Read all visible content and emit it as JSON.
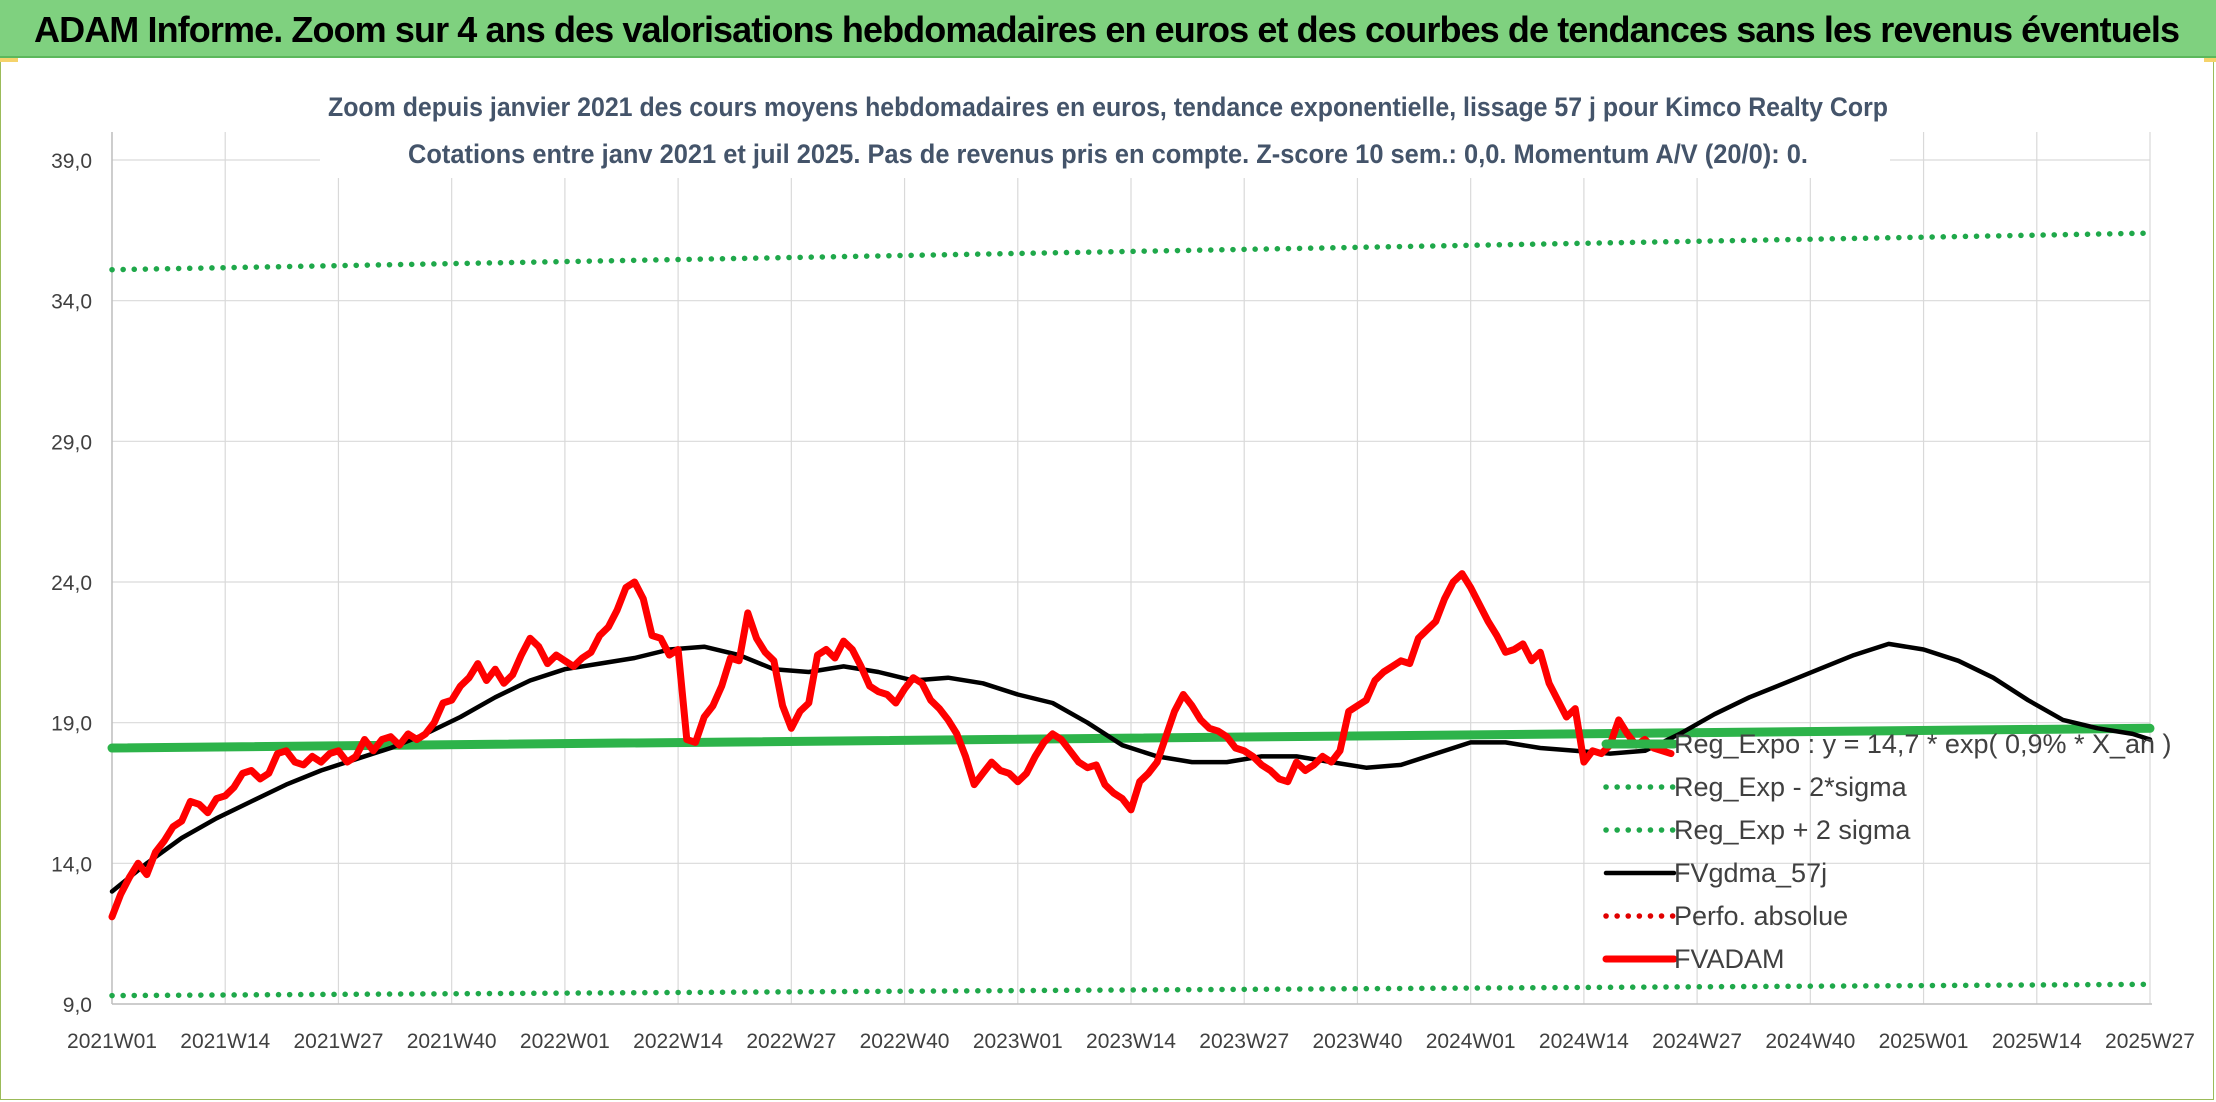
{
  "banner": {
    "title": "ADAM Informe. Zoom sur 4 ans des valorisations hebdomadaires en euros et des courbes de tendances sans les revenus éventuels"
  },
  "colors": {
    "banner_bg": "#7fd17f",
    "reg_expo": "#2db34a",
    "reg_band": "#1fa84a",
    "fvgdma": "#000000",
    "perfo": "#e00000",
    "fvadam": "#ff0000",
    "grid": "#d9d9d9"
  },
  "chart_data": {
    "type": "line",
    "title_line1": "Zoom depuis janvier 2021 des cours moyens hebdomadaires en euros, tendance exponentielle, lissage 57 j pour Kimco Realty Corp",
    "title_line2": "Cotations entre janv 2021 et juil 2025. Pas de revenus pris en compte. Z-score 10 sem.: 0,0. Momentum A/V (20/0): 0.",
    "ylim": [
      9,
      39
    ],
    "y_ticks": [
      "9,0",
      "14,0",
      "19,0",
      "24,0",
      "29,0",
      "34,0",
      "39,0"
    ],
    "y_tick_values": [
      9,
      14,
      19,
      24,
      29,
      34,
      39
    ],
    "x_ticks": [
      "2021W01",
      "2021W14",
      "2021W27",
      "2021W40",
      "2022W01",
      "2022W14",
      "2022W27",
      "2022W40",
      "2023W01",
      "2023W14",
      "2023W27",
      "2023W40",
      "2024W01",
      "2024W14",
      "2024W27",
      "2024W40",
      "2025W01",
      "2025W14",
      "2025W27"
    ],
    "x_tick_weeks": [
      0,
      13,
      26,
      39,
      52,
      65,
      78,
      91,
      104,
      117,
      130,
      143,
      156,
      169,
      182,
      195,
      208,
      221,
      234
    ],
    "grid": true,
    "legend_position": "bottom-right",
    "series": [
      {
        "name": "Reg_Expo : y = 14,7 * exp( 0,9% * X_an )",
        "style": "solid-thick",
        "color": "#2db34a",
        "points": [
          [
            0,
            18.1
          ],
          [
            234,
            18.8
          ]
        ]
      },
      {
        "name": "Reg_Exp - 2*sigma",
        "style": "dotted",
        "color": "#1fa84a",
        "points": [
          [
            0,
            9.3
          ],
          [
            234,
            9.7
          ]
        ]
      },
      {
        "name": "Reg_Exp + 2 sigma",
        "style": "dotted",
        "color": "#1fa84a",
        "points": [
          [
            0,
            35.1
          ],
          [
            234,
            36.4
          ]
        ]
      },
      {
        "name": "FVgdma_57j",
        "style": "solid",
        "color": "#000000",
        "points": [
          [
            0,
            13.0
          ],
          [
            4,
            14.0
          ],
          [
            8,
            14.9
          ],
          [
            12,
            15.6
          ],
          [
            16,
            16.2
          ],
          [
            20,
            16.8
          ],
          [
            24,
            17.3
          ],
          [
            28,
            17.7
          ],
          [
            32,
            18.1
          ],
          [
            36,
            18.6
          ],
          [
            40,
            19.2
          ],
          [
            44,
            19.9
          ],
          [
            48,
            20.5
          ],
          [
            52,
            20.9
          ],
          [
            56,
            21.1
          ],
          [
            60,
            21.3
          ],
          [
            64,
            21.6
          ],
          [
            68,
            21.7
          ],
          [
            72,
            21.4
          ],
          [
            76,
            20.9
          ],
          [
            80,
            20.8
          ],
          [
            84,
            21.0
          ],
          [
            88,
            20.8
          ],
          [
            92,
            20.5
          ],
          [
            96,
            20.6
          ],
          [
            100,
            20.4
          ],
          [
            104,
            20.0
          ],
          [
            108,
            19.7
          ],
          [
            112,
            19.0
          ],
          [
            116,
            18.2
          ],
          [
            120,
            17.8
          ],
          [
            124,
            17.6
          ],
          [
            128,
            17.6
          ],
          [
            132,
            17.8
          ],
          [
            136,
            17.8
          ],
          [
            140,
            17.6
          ],
          [
            144,
            17.4
          ],
          [
            148,
            17.5
          ],
          [
            152,
            17.9
          ],
          [
            156,
            18.3
          ],
          [
            160,
            18.3
          ],
          [
            164,
            18.1
          ],
          [
            168,
            18.0
          ],
          [
            172,
            17.9
          ],
          [
            176,
            18.0
          ],
          [
            180,
            18.6
          ],
          [
            184,
            19.3
          ],
          [
            188,
            19.9
          ],
          [
            192,
            20.4
          ],
          [
            196,
            20.9
          ],
          [
            200,
            21.4
          ],
          [
            204,
            21.8
          ],
          [
            208,
            21.6
          ],
          [
            212,
            21.2
          ],
          [
            216,
            20.6
          ],
          [
            220,
            19.8
          ],
          [
            224,
            19.1
          ],
          [
            228,
            18.8
          ],
          [
            232,
            18.6
          ],
          [
            234,
            18.4
          ]
        ]
      },
      {
        "name": "Perfo. absolue",
        "style": "dotted",
        "color": "#e00000",
        "points": []
      },
      {
        "name": "FVADAM",
        "style": "solid-thick",
        "color": "#ff0000",
        "points": [
          [
            0,
            12.1
          ],
          [
            1,
            12.9
          ],
          [
            2,
            13.5
          ],
          [
            3,
            14.0
          ],
          [
            4,
            13.6
          ],
          [
            5,
            14.4
          ],
          [
            6,
            14.8
          ],
          [
            7,
            15.3
          ],
          [
            8,
            15.5
          ],
          [
            9,
            16.2
          ],
          [
            10,
            16.1
          ],
          [
            11,
            15.8
          ],
          [
            12,
            16.3
          ],
          [
            13,
            16.4
          ],
          [
            14,
            16.7
          ],
          [
            15,
            17.2
          ],
          [
            16,
            17.3
          ],
          [
            17,
            17.0
          ],
          [
            18,
            17.2
          ],
          [
            19,
            17.9
          ],
          [
            20,
            18.0
          ],
          [
            21,
            17.6
          ],
          [
            22,
            17.5
          ],
          [
            23,
            17.8
          ],
          [
            24,
            17.6
          ],
          [
            25,
            17.9
          ],
          [
            26,
            18.0
          ],
          [
            27,
            17.6
          ],
          [
            28,
            17.8
          ],
          [
            29,
            18.4
          ],
          [
            30,
            18.0
          ],
          [
            31,
            18.4
          ],
          [
            32,
            18.5
          ],
          [
            33,
            18.2
          ],
          [
            34,
            18.6
          ],
          [
            35,
            18.4
          ],
          [
            36,
            18.6
          ],
          [
            37,
            19.0
          ],
          [
            38,
            19.7
          ],
          [
            39,
            19.8
          ],
          [
            40,
            20.3
          ],
          [
            41,
            20.6
          ],
          [
            42,
            21.1
          ],
          [
            43,
            20.5
          ],
          [
            44,
            20.9
          ],
          [
            45,
            20.4
          ],
          [
            46,
            20.7
          ],
          [
            47,
            21.4
          ],
          [
            48,
            22.0
          ],
          [
            49,
            21.7
          ],
          [
            50,
            21.1
          ],
          [
            51,
            21.4
          ],
          [
            52,
            21.2
          ],
          [
            53,
            21.0
          ],
          [
            54,
            21.3
          ],
          [
            55,
            21.5
          ],
          [
            56,
            22.1
          ],
          [
            57,
            22.4
          ],
          [
            58,
            23.0
          ],
          [
            59,
            23.8
          ],
          [
            60,
            24.0
          ],
          [
            61,
            23.4
          ],
          [
            62,
            22.1
          ],
          [
            63,
            22.0
          ],
          [
            64,
            21.4
          ],
          [
            65,
            21.6
          ],
          [
            66,
            18.4
          ],
          [
            67,
            18.3
          ],
          [
            68,
            19.2
          ],
          [
            69,
            19.6
          ],
          [
            70,
            20.3
          ],
          [
            71,
            21.3
          ],
          [
            72,
            21.2
          ],
          [
            73,
            22.9
          ],
          [
            74,
            22.0
          ],
          [
            75,
            21.5
          ],
          [
            76,
            21.2
          ],
          [
            77,
            19.6
          ],
          [
            78,
            18.8
          ],
          [
            79,
            19.4
          ],
          [
            80,
            19.7
          ],
          [
            81,
            21.4
          ],
          [
            82,
            21.6
          ],
          [
            83,
            21.3
          ],
          [
            84,
            21.9
          ],
          [
            85,
            21.6
          ],
          [
            86,
            21.0
          ],
          [
            87,
            20.3
          ],
          [
            88,
            20.1
          ],
          [
            89,
            20.0
          ],
          [
            90,
            19.7
          ],
          [
            91,
            20.2
          ],
          [
            92,
            20.6
          ],
          [
            93,
            20.4
          ],
          [
            94,
            19.8
          ],
          [
            95,
            19.5
          ],
          [
            96,
            19.1
          ],
          [
            97,
            18.6
          ],
          [
            98,
            17.8
          ],
          [
            99,
            16.8
          ],
          [
            100,
            17.2
          ],
          [
            101,
            17.6
          ],
          [
            102,
            17.3
          ],
          [
            103,
            17.2
          ],
          [
            104,
            16.9
          ],
          [
            105,
            17.2
          ],
          [
            106,
            17.8
          ],
          [
            107,
            18.3
          ],
          [
            108,
            18.6
          ],
          [
            109,
            18.4
          ],
          [
            110,
            18.0
          ],
          [
            111,
            17.6
          ],
          [
            112,
            17.4
          ],
          [
            113,
            17.5
          ],
          [
            114,
            16.8
          ],
          [
            115,
            16.5
          ],
          [
            116,
            16.3
          ],
          [
            117,
            15.9
          ],
          [
            118,
            16.9
          ],
          [
            119,
            17.2
          ],
          [
            120,
            17.6
          ],
          [
            121,
            18.5
          ],
          [
            122,
            19.4
          ],
          [
            123,
            20.0
          ],
          [
            124,
            19.6
          ],
          [
            125,
            19.1
          ],
          [
            126,
            18.8
          ],
          [
            127,
            18.7
          ],
          [
            128,
            18.5
          ],
          [
            129,
            18.1
          ],
          [
            130,
            18.0
          ],
          [
            131,
            17.8
          ],
          [
            132,
            17.5
          ],
          [
            133,
            17.3
          ],
          [
            134,
            17.0
          ],
          [
            135,
            16.9
          ],
          [
            136,
            17.6
          ],
          [
            137,
            17.3
          ],
          [
            138,
            17.5
          ],
          [
            139,
            17.8
          ],
          [
            140,
            17.6
          ],
          [
            141,
            18.0
          ],
          [
            142,
            19.4
          ],
          [
            143,
            19.6
          ],
          [
            144,
            19.8
          ],
          [
            145,
            20.5
          ],
          [
            146,
            20.8
          ],
          [
            147,
            21.0
          ],
          [
            148,
            21.2
          ],
          [
            149,
            21.1
          ],
          [
            150,
            22.0
          ],
          [
            151,
            22.3
          ],
          [
            152,
            22.6
          ],
          [
            153,
            23.4
          ],
          [
            154,
            24.0
          ],
          [
            155,
            24.3
          ],
          [
            156,
            23.8
          ],
          [
            157,
            23.2
          ],
          [
            158,
            22.6
          ],
          [
            159,
            22.1
          ],
          [
            160,
            21.5
          ],
          [
            161,
            21.6
          ],
          [
            162,
            21.8
          ],
          [
            163,
            21.2
          ],
          [
            164,
            21.5
          ],
          [
            165,
            20.4
          ],
          [
            166,
            19.8
          ],
          [
            167,
            19.2
          ],
          [
            168,
            19.5
          ],
          [
            169,
            17.6
          ],
          [
            170,
            18.0
          ],
          [
            171,
            17.9
          ],
          [
            172,
            18.2
          ],
          [
            173,
            19.1
          ],
          [
            174,
            18.6
          ],
          [
            175,
            18.2
          ],
          [
            176,
            18.4
          ],
          [
            177,
            18.1
          ],
          [
            178,
            18.0
          ],
          [
            179,
            17.9
          ]
        ]
      }
    ]
  }
}
